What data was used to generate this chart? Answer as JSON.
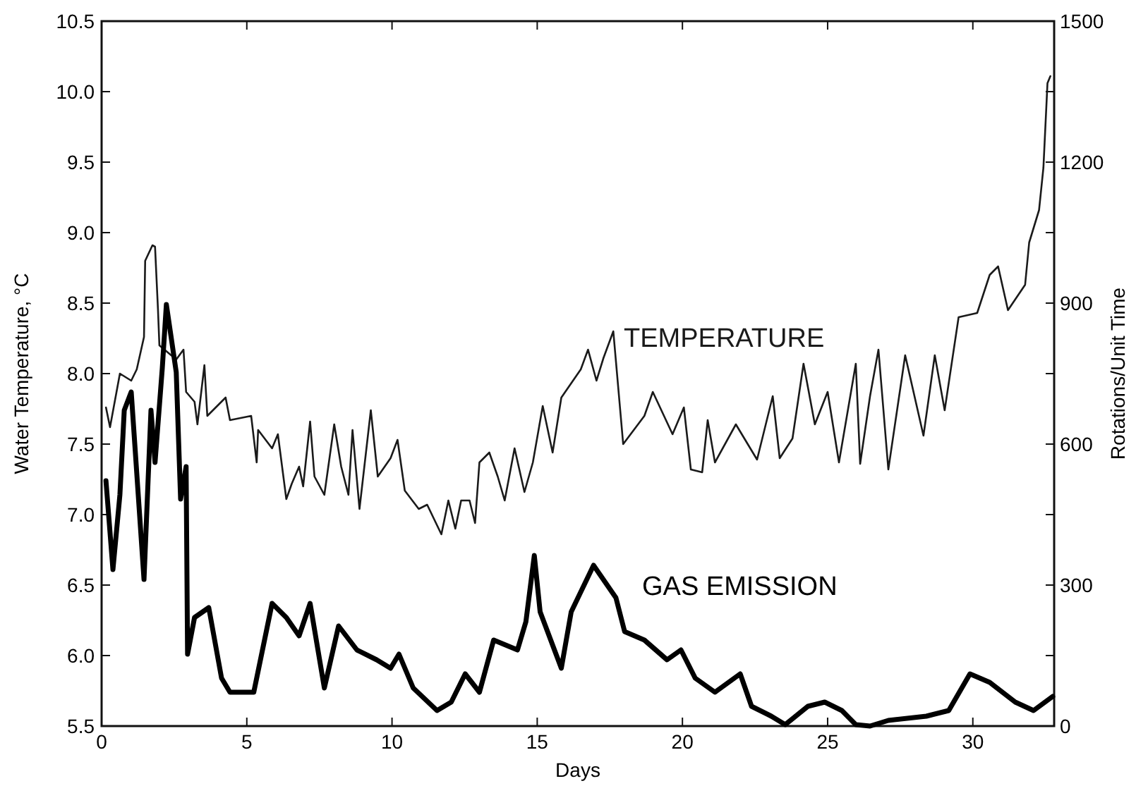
{
  "chart_data": {
    "type": "line",
    "xlabel": "Days",
    "ylabel": "Water Temperature, °C",
    "y2label": "Rotations/Unit Time",
    "xlim": [
      0,
      32.8
    ],
    "xticks": [
      0,
      5,
      10,
      15,
      20,
      25,
      30
    ],
    "ylim": [
      5.5,
      10.5
    ],
    "yticks": [
      5.5,
      {
        "value": 6,
        "label": "6.0"
      },
      6.5,
      {
        "value": 7,
        "label": "7.0"
      },
      7.5,
      {
        "value": 8,
        "label": "8.0"
      },
      8.5,
      {
        "value": 9,
        "label": "9.0"
      },
      9.5,
      {
        "value": 10,
        "label": "10.0"
      },
      10.5
    ],
    "y2lim": [
      0,
      1500
    ],
    "y2ticks": [
      0,
      {
        "value": 150,
        "label": null
      },
      300,
      {
        "value": 450,
        "label": null
      },
      600,
      {
        "value": 750,
        "label": null
      },
      900,
      {
        "value": 1050,
        "label": null
      },
      1200,
      {
        "value": 1350,
        "label": null
      },
      1500
    ],
    "grid": false,
    "line_style": "solid",
    "series": [
      {
        "name": "TEMPERATURE",
        "color": "#1a1a1a",
        "x": [
          0.15,
          0.29,
          0.63,
          1.02,
          1.21,
          1.46,
          1.5,
          1.75,
          1.84,
          1.94,
          1.99,
          2.57,
          2.82,
          2.91,
          3.2,
          3.3,
          3.54,
          3.64,
          4.27,
          4.42,
          5.15,
          5.34,
          5.39,
          5.87,
          6.07,
          6.36,
          6.55,
          6.8,
          6.94,
          7.18,
          7.33,
          7.67,
          8.01,
          8.25,
          8.5,
          8.64,
          8.88,
          9.27,
          9.51,
          9.95,
          10.19,
          10.44,
          10.92,
          11.21,
          11.7,
          11.94,
          12.18,
          12.38,
          12.67,
          12.86,
          13.01,
          13.35,
          13.64,
          13.88,
          14.22,
          14.56,
          14.85,
          15.19,
          15.53,
          15.83,
          16.5,
          16.75,
          17.04,
          17.28,
          17.62,
          17.96,
          18.69,
          18.98,
          19.66,
          20.05,
          20.29,
          20.68,
          20.87,
          21.12,
          21.84,
          22.57,
          23.11,
          23.35,
          23.79,
          24.17,
          24.56,
          25.0,
          25.39,
          25.97,
          26.12,
          26.46,
          26.75,
          27.09,
          27.67,
          28.3,
          28.69,
          29.03,
          29.51,
          30.15,
          30.58,
          30.87,
          31.21,
          31.8,
          31.94,
          32.28,
          32.43,
          32.57,
          32.67
        ],
        "values": [
          7.76,
          7.62,
          8.0,
          7.95,
          8.03,
          8.26,
          8.8,
          8.91,
          8.9,
          8.46,
          8.2,
          8.1,
          8.17,
          7.87,
          7.8,
          7.64,
          8.06,
          7.7,
          7.83,
          7.67,
          7.7,
          7.37,
          7.6,
          7.47,
          7.57,
          7.11,
          7.22,
          7.34,
          7.2,
          7.66,
          7.27,
          7.14,
          7.64,
          7.34,
          7.14,
          7.6,
          7.04,
          7.74,
          7.27,
          7.4,
          7.53,
          7.17,
          7.04,
          7.07,
          6.86,
          7.1,
          6.9,
          7.1,
          7.1,
          6.94,
          7.37,
          7.44,
          7.27,
          7.1,
          7.47,
          7.16,
          7.37,
          7.77,
          7.44,
          7.83,
          8.03,
          8.17,
          7.95,
          8.11,
          8.3,
          7.5,
          7.7,
          7.87,
          7.57,
          7.76,
          7.32,
          7.3,
          7.67,
          7.37,
          7.64,
          7.39,
          7.84,
          7.4,
          7.54,
          8.07,
          7.64,
          7.87,
          7.37,
          8.07,
          7.36,
          7.84,
          8.17,
          7.32,
          8.13,
          7.56,
          8.13,
          7.74,
          8.4,
          8.43,
          8.7,
          8.76,
          8.45,
          8.63,
          8.93,
          9.16,
          9.46,
          10.06,
          10.11
        ]
      },
      {
        "name": "GAS EMISSION",
        "color": "#000000",
        "axis": "y2",
        "x": [
          0.15,
          0.39,
          0.63,
          0.78,
          1.02,
          1.46,
          1.7,
          1.84,
          2.09,
          2.23,
          2.57,
          2.72,
          2.91,
          2.96,
          3.2,
          3.69,
          4.13,
          4.42,
          5.24,
          5.87,
          6.36,
          6.8,
          7.18,
          7.67,
          8.16,
          8.79,
          9.47,
          9.95,
          10.24,
          10.73,
          11.55,
          12.04,
          12.52,
          13.01,
          13.5,
          14.32,
          14.61,
          14.9,
          15.1,
          15.83,
          16.17,
          16.94,
          17.71,
          18.01,
          18.69,
          19.47,
          19.95,
          20.44,
          21.12,
          21.99,
          22.38,
          23.06,
          23.54,
          24.32,
          24.9,
          25.49,
          25.97,
          26.46,
          27.09,
          28.4,
          29.17,
          29.9,
          30.58,
          31.46,
          32.09,
          32.75
        ],
        "values": [
          522,
          333,
          492,
          672,
          711,
          312,
          672,
          561,
          762,
          897,
          753,
          483,
          552,
          153,
          231,
          252,
          102,
          72,
          72,
          261,
          231,
          192,
          261,
          81,
          213,
          162,
          141,
          123,
          153,
          81,
          33,
          51,
          111,
          72,
          183,
          162,
          222,
          363,
          243,
          123,
          243,
          342,
          273,
          201,
          183,
          141,
          162,
          102,
          72,
          111,
          42,
          21,
          3,
          42,
          51,
          33,
          3,
          0,
          12,
          21,
          33,
          111,
          93,
          51,
          33,
          63
        ]
      }
    ]
  }
}
